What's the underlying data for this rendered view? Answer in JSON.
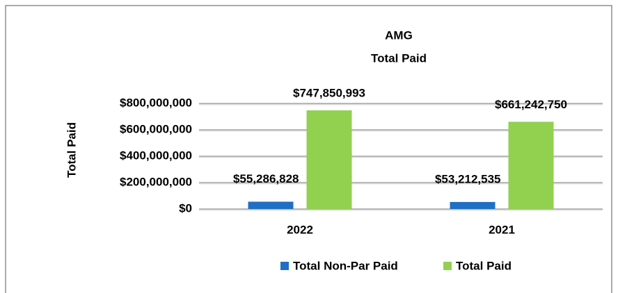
{
  "chart_data": {
    "type": "bar",
    "title": "AMG",
    "subtitle": "Total Paid",
    "y_label": "Total Paid",
    "categories": [
      "2022",
      "2021"
    ],
    "series": [
      {
        "name": "Total Non-Par Paid",
        "color": "#1f6fc4",
        "values": [
          55286828,
          53212535
        ],
        "value_labels": [
          "$55,286,828",
          "$53,212,535"
        ]
      },
      {
        "name": "Total Paid",
        "color": "#92d050",
        "values": [
          747850993,
          661242750
        ],
        "value_labels": [
          "$747,850,993",
          "$661,242,750"
        ]
      }
    ],
    "ylim": [
      0,
      800000000
    ],
    "yticks": [
      {
        "value": 0,
        "label": "$0"
      },
      {
        "value": 200000000,
        "label": "$200,000,000"
      },
      {
        "value": 400000000,
        "label": "$400,000,000"
      },
      {
        "value": 600000000,
        "label": "$600,000,000"
      },
      {
        "value": 800000000,
        "label": "$800,000,000"
      }
    ],
    "grid": true,
    "legend": "bottom"
  }
}
